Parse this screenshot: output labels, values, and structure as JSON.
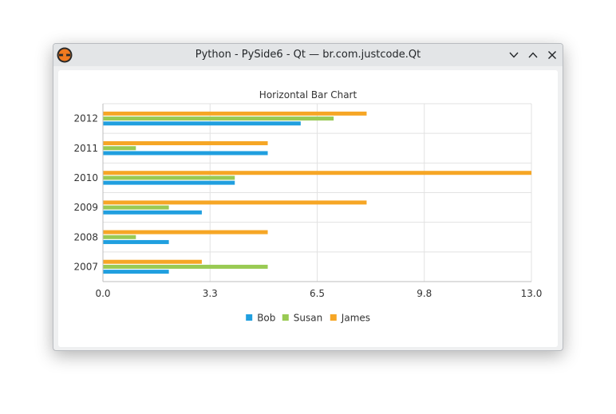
{
  "window": {
    "title": "Python - PySide6 - Qt — br.com.justcode.Qt",
    "icons": [
      "python-logo-icon",
      "minimize-icon",
      "maximize-icon",
      "close-icon"
    ]
  },
  "chart_data": {
    "type": "bar",
    "orientation": "horizontal",
    "title": "Horizontal Bar Chart",
    "xlabel": "",
    "ylabel": "",
    "categories": [
      "2007",
      "2008",
      "2009",
      "2010",
      "2011",
      "2012"
    ],
    "series": [
      {
        "name": "Bob",
        "color": "#209fdf",
        "values": [
          2,
          2,
          3,
          4,
          5,
          6
        ]
      },
      {
        "name": "Susan",
        "color": "#99ca53",
        "values": [
          5,
          1,
          2,
          4,
          1,
          7
        ]
      },
      {
        "name": "James",
        "color": "#f6a625",
        "values": [
          3,
          5,
          8,
          13,
          5,
          8
        ]
      }
    ],
    "xlim": [
      0,
      13
    ],
    "x_ticks": [
      "0.0",
      "3.3",
      "6.5",
      "9.8",
      "13.0"
    ],
    "grid": true,
    "legend_position": "bottom"
  }
}
